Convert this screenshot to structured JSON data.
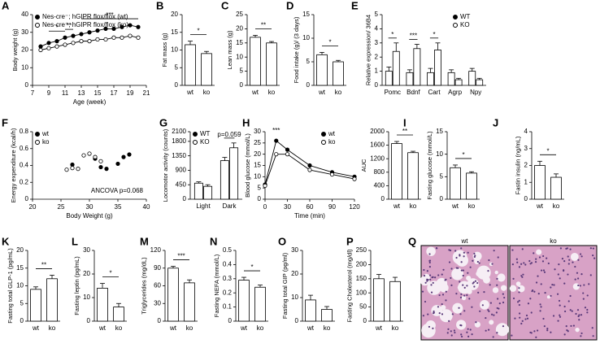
{
  "chart_data": [
    {
      "type": "line",
      "panel": "A",
      "xlabel": "Age (week)",
      "ylabel": "Body weight (g)",
      "x": [
        8,
        9,
        10,
        11,
        12,
        13,
        14,
        15,
        16,
        17,
        18,
        19,
        20
      ],
      "series": [
        {
          "name": "Nes-cre⁻; hGIPR flox/flox (wt)",
          "color": "#000000",
          "fill": "#000000",
          "values": [
            22,
            24,
            25,
            27,
            28,
            29,
            30,
            31,
            32,
            32,
            33,
            34,
            33
          ]
        },
        {
          "name": "Nes-cre⁺; hGIPR flox/flox (ko)",
          "color": "#000000",
          "fill": "#ffffff",
          "values": [
            20,
            21,
            22,
            23,
            24,
            25,
            25,
            26,
            26,
            27,
            27,
            28,
            27
          ]
        }
      ],
      "xlim": [
        7,
        21
      ],
      "xticks": [
        7,
        9,
        11,
        13,
        15,
        17,
        19,
        21
      ],
      "ylim": [
        0,
        40
      ],
      "yticks": [
        0,
        10,
        20,
        30,
        40
      ],
      "legend": "upper left",
      "annotations": [
        {
          "label": "*",
          "x": [
            9,
            11
          ]
        },
        {
          "label": "**",
          "x": [
            11,
            12
          ]
        },
        {
          "label": "***",
          "x": [
            13,
            20
          ]
        }
      ]
    },
    {
      "type": "bar",
      "panel": "B",
      "ylabel": "Fat mass (g)",
      "categories": [
        "wt",
        "ko"
      ],
      "values": [
        11.5,
        9
      ],
      "errors": [
        1,
        0.6
      ],
      "color": "#000000",
      "ylim": [
        0,
        20
      ],
      "yticks": [
        0,
        5,
        10,
        15,
        20
      ],
      "annotation": "*"
    },
    {
      "type": "bar",
      "panel": "C",
      "ylabel": "Lean mass (g)",
      "categories": [
        "wt",
        "ko"
      ],
      "values": [
        17,
        15
      ],
      "errors": [
        0.7,
        0.5
      ],
      "color": "#000000",
      "ylim": [
        0,
        25
      ],
      "yticks": [
        0,
        5,
        10,
        15,
        20,
        25
      ],
      "annotation": "**"
    },
    {
      "type": "bar",
      "panel": "D",
      "ylabel": "Food intake (g)/ (3 days)",
      "categories": [
        "wt",
        "ko"
      ],
      "values": [
        6.5,
        5
      ],
      "errors": [
        0.5,
        0.3
      ],
      "color": "#000000",
      "ylim": [
        0,
        15
      ],
      "yticks": [
        0,
        5,
        10,
        15
      ],
      "annotation": "*"
    },
    {
      "type": "grouped",
      "panel": "E",
      "ylabel": "Relative expression/ 36B4",
      "categories": [
        "Pomc",
        "Bdnf",
        "Cart",
        "Agrp",
        "Npy"
      ],
      "series": [
        {
          "name": "WT",
          "color": "#000000",
          "fill": "#000000",
          "values": [
            1,
            0.9,
            0.9,
            0.9,
            1
          ],
          "errors": [
            0.3,
            0.2,
            0.3,
            0.2,
            0.2
          ]
        },
        {
          "name": "KO",
          "color": "#000000",
          "fill": "#ffffff",
          "values": [
            2.4,
            2.6,
            2.5,
            0.4,
            0.4
          ],
          "errors": [
            0.6,
            0.3,
            0.5,
            0.1,
            0.1
          ]
        }
      ],
      "ylim": [
        0,
        5
      ],
      "yticks": [
        0,
        1,
        2,
        3,
        4,
        5
      ],
      "legend": "upper right",
      "annotations": [
        "*",
        "***",
        "*",
        null,
        null
      ]
    },
    {
      "type": "scatter",
      "panel": "F",
      "xlabel": "Body Weight (g)",
      "ylabel": "Energy expenditure (kcal/h)",
      "series": [
        {
          "name": "wt",
          "color": "#000000",
          "fill": "#000000",
          "x": [
            27,
            31,
            32,
            33,
            35,
            36,
            37
          ],
          "values": [
            0.41,
            0.48,
            0.38,
            0.36,
            0.42,
            0.5,
            0.53
          ]
        },
        {
          "name": "ko",
          "color": "#000000",
          "fill": "#ffffff",
          "x": [
            26,
            27,
            28,
            29,
            30,
            31,
            32
          ],
          "values": [
            0.35,
            0.37,
            0.36,
            0.52,
            0.54,
            0.5,
            0.45
          ]
        }
      ],
      "xlim": [
        20,
        40
      ],
      "xticks": [
        20,
        25,
        30,
        35,
        40
      ],
      "ylim": [
        0,
        0.8
      ],
      "yticks": [
        0,
        0.2,
        0.4,
        0.6,
        0.8
      ],
      "legend": "upper left",
      "annotation": "ANCOVA p=0.068"
    },
    {
      "type": "grouped",
      "panel": "G",
      "ylabel": "Locomotor activity (counts)",
      "categories": [
        "Light",
        "Dark"
      ],
      "series": [
        {
          "name": "WT",
          "color": "#000000",
          "fill": "#000000",
          "values": [
            500,
            1200
          ],
          "errors": [
            40,
            100
          ]
        },
        {
          "name": "KO",
          "color": "#000000",
          "fill": "#ffffff",
          "values": [
            400,
            1600
          ],
          "errors": [
            50,
            150
          ]
        }
      ],
      "ylim": [
        0,
        2100
      ],
      "yticks": [
        0,
        450,
        900,
        1350,
        1800,
        2100
      ],
      "legend": "upper left",
      "annotations": [
        null,
        "p=0.059"
      ]
    },
    {
      "type": "line",
      "panel": "H",
      "xlabel": "Time (min)",
      "ylabel": "Blood glucose (mmol/L)",
      "x": [
        0,
        15,
        30,
        60,
        90,
        120
      ],
      "series": [
        {
          "name": "wt",
          "color": "#000000",
          "fill": "#000000",
          "values": [
            6.5,
            26,
            22,
            15,
            12,
            10
          ]
        },
        {
          "name": "ko",
          "color": "#000000",
          "fill": "#ffffff",
          "values": [
            6,
            20,
            20,
            13,
            11,
            9
          ]
        }
      ],
      "xlim": [
        0,
        120
      ],
      "xticks": [
        0,
        30,
        60,
        90,
        120
      ],
      "ylim": [
        0,
        30
      ],
      "yticks": [
        0,
        5,
        10,
        15,
        20,
        25,
        30
      ],
      "legend": "upper right",
      "annotations": [
        {
          "label": "***",
          "x": [
            15,
            15
          ]
        }
      ]
    },
    {
      "type": "bar",
      "ylabel": "AUC",
      "categories": [
        "wt",
        "ko"
      ],
      "values": [
        1650,
        1380
      ],
      "errors": [
        60,
        40
      ],
      "color": "#000000",
      "ylim": [
        0,
        2000
      ],
      "yticks": [
        0,
        400,
        800,
        1200,
        1600,
        2000
      ],
      "annotation": "**"
    },
    {
      "type": "bar",
      "panel": "I",
      "ylabel": "Fasting glucose (mmol/L)",
      "categories": [
        "wt",
        "ko"
      ],
      "values": [
        7,
        5.8
      ],
      "errors": [
        0.6,
        0.3
      ],
      "color": "#000000",
      "ylim": [
        0,
        15
      ],
      "yticks": [
        0,
        5,
        10,
        15
      ],
      "annotation": "*"
    },
    {
      "type": "bar",
      "panel": "J",
      "ylabel": "Fastin insulin (ng/mL)",
      "categories": [
        "wt",
        "ko"
      ],
      "values": [
        2,
        1.3
      ],
      "errors": [
        0.25,
        0.2
      ],
      "color": "#000000",
      "ylim": [
        0,
        4
      ],
      "yticks": [
        0,
        1,
        2,
        3,
        4
      ],
      "annotation": "*"
    },
    {
      "type": "bar",
      "panel": "K",
      "ylabel": "Fasting total GLP-1 (pg/mL)",
      "categories": [
        "wt",
        "ko"
      ],
      "values": [
        9,
        12
      ],
      "errors": [
        0.7,
        1
      ],
      "color": "#000000",
      "ylim": [
        0,
        20
      ],
      "yticks": [
        0,
        5,
        10,
        15,
        20
      ],
      "annotation": "**"
    },
    {
      "type": "bar",
      "panel": "L",
      "ylabel": "Fasting leptin (pg/mL)",
      "categories": [
        "wt",
        "ko"
      ],
      "values": [
        14,
        6
      ],
      "errors": [
        2,
        1.5
      ],
      "color": "#000000",
      "ylim": [
        0,
        30
      ],
      "yticks": [
        0,
        10,
        20,
        30
      ],
      "annotation": "*"
    },
    {
      "type": "bar",
      "panel": "M",
      "ylabel": "Triglycerides (mg/dL)",
      "categories": [
        "wt",
        "ko"
      ],
      "values": [
        90,
        65
      ],
      "errors": [
        3,
        5
      ],
      "color": "#000000",
      "ylim": [
        0,
        120
      ],
      "yticks": [
        0,
        30,
        60,
        90,
        120
      ],
      "annotation": "***"
    },
    {
      "type": "bar",
      "panel": "N",
      "ylabel": "Fasting NEFA (mmol/L)",
      "categories": [
        "wt",
        "ko"
      ],
      "values": [
        0.29,
        0.24
      ],
      "errors": [
        0.02,
        0.015
      ],
      "color": "#000000",
      "ylim": [
        0,
        0.5
      ],
      "yticks": [
        0,
        0.1,
        0.2,
        0.3,
        0.4,
        0.5
      ],
      "annotation": "*"
    },
    {
      "type": "bar",
      "panel": "O",
      "ylabel": "Fasting total GIP (pg/ml)",
      "categories": [
        "wt",
        "ko"
      ],
      "values": [
        9,
        5
      ],
      "errors": [
        2,
        1.2
      ],
      "color": "#000000",
      "ylim": [
        0,
        30
      ],
      "yticks": [
        0,
        10,
        20,
        30
      ]
    },
    {
      "type": "bar",
      "panel": "P",
      "ylabel": "Fasting Cholesterol (mg/dl)",
      "categories": [
        "wt",
        "ko"
      ],
      "values": [
        150,
        140
      ],
      "errors": [
        15,
        15
      ],
      "color": "#000000",
      "ylim": [
        0,
        250
      ],
      "yticks": [
        0,
        50,
        100,
        150,
        200,
        250
      ]
    },
    {
      "type": "image",
      "panel": "Q",
      "labels": [
        "wt",
        "ko"
      ]
    }
  ]
}
